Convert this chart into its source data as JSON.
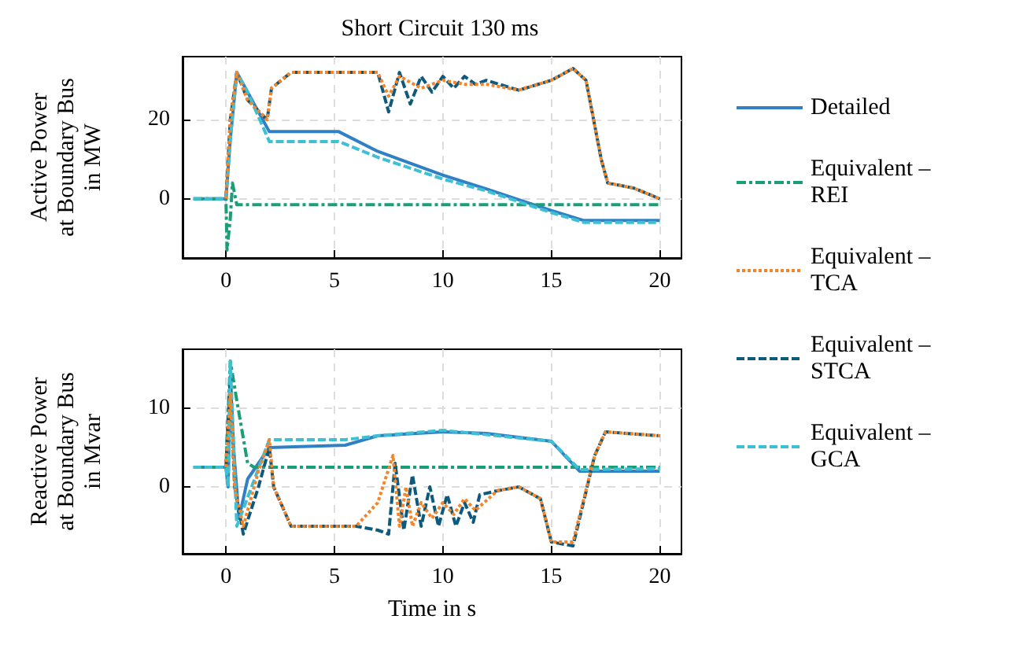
{
  "chart_data": [
    {
      "type": "line",
      "title": "Short Circuit 130 ms",
      "ylabel": "Active Power\nat Boundary Bus\nin MW",
      "xlim": [
        -2,
        21
      ],
      "xticks": [
        0,
        5,
        10,
        15,
        20
      ],
      "ylim": [
        -15,
        36
      ],
      "yticks": [
        0,
        20
      ],
      "grid": true,
      "legend": "right",
      "marker": "none",
      "series": [
        {
          "name": "Detailed",
          "color": "#2f80c4",
          "line_style": "solid",
          "x": [
            -1.5,
            0,
            0.2,
            0.5,
            1,
            2,
            5.2,
            7,
            10,
            12,
            15,
            16.5,
            20
          ],
          "values": [
            0,
            0,
            15,
            32,
            27,
            17,
            17,
            12,
            6,
            2.5,
            -3,
            -5.5,
            -5.5
          ]
        },
        {
          "name": "Equivalent – REI",
          "color": "#1a9e77",
          "line_style": "dashdot",
          "x": [
            -1.5,
            0,
            0.05,
            0.2,
            0.3,
            0.5,
            20
          ],
          "values": [
            0,
            0,
            -13,
            -5,
            4,
            -1.5,
            -1.5
          ]
        },
        {
          "name": "Equivalent – TCA",
          "color": "#f5852a",
          "line_style": "dotted",
          "x": [
            0,
            0.2,
            0.5,
            1,
            1.9,
            2.1,
            3,
            7,
            7.5,
            8,
            9,
            10,
            11,
            12,
            13.5,
            15,
            16,
            16.6,
            17.3,
            17.6,
            18.8,
            20
          ],
          "values": [
            0,
            20,
            32,
            25,
            20,
            28,
            32,
            32,
            26,
            31,
            28,
            30,
            29,
            29,
            27.5,
            30,
            33,
            30,
            10,
            4,
            2.7,
            0
          ]
        },
        {
          "name": "Equivalent – STCA",
          "color": "#0d5a7c",
          "line_style": "dashed",
          "x": [
            0,
            0.2,
            0.5,
            1,
            1.9,
            2.1,
            3,
            7,
            7.5,
            8,
            8.5,
            9,
            9.5,
            10,
            10.5,
            11,
            11.5,
            12,
            13.5,
            15,
            16,
            16.6,
            17.3,
            17.6,
            18.8,
            20
          ],
          "values": [
            0,
            20,
            32,
            25,
            20,
            28,
            32,
            32,
            22,
            32,
            24,
            31,
            27,
            31,
            28,
            31,
            29,
            30,
            27.5,
            30,
            33,
            30,
            10,
            4,
            2.7,
            0
          ]
        },
        {
          "name": "Equivalent – GCA",
          "color": "#3ec0d4",
          "line_style": "dashed",
          "x": [
            -1.5,
            0,
            0.2,
            0.5,
            1,
            2,
            5.2,
            7,
            10,
            12,
            15,
            16.5,
            20
          ],
          "values": [
            0,
            0,
            15,
            32,
            27,
            14.5,
            14.5,
            10.5,
            5,
            2,
            -3.5,
            -6,
            -6
          ]
        }
      ]
    },
    {
      "type": "line",
      "xlabel": "Time in s",
      "ylabel": "Reactive Power\nat Boundary Bus\nin Mvar",
      "xlim": [
        -2,
        21
      ],
      "xticks": [
        0,
        5,
        10,
        15,
        20
      ],
      "ylim": [
        -8.5,
        17.5
      ],
      "yticks": [
        0,
        10
      ],
      "grid": true,
      "legend": false,
      "marker": "none",
      "series": [
        {
          "color": "#2f80c4",
          "line_style": "solid",
          "x": [
            -1.5,
            0,
            0.1,
            0.2,
            0.35,
            0.6,
            1,
            2,
            5.5,
            7,
            10,
            12,
            15,
            16.3,
            20
          ],
          "values": [
            2.5,
            2.5,
            0,
            14,
            5,
            -4,
            1,
            5,
            5.3,
            6.5,
            7,
            6.8,
            5.8,
            2,
            2
          ]
        },
        {
          "color": "#1a9e77",
          "line_style": "dashdot",
          "x": [
            -1.5,
            0,
            0.2,
            0.5,
            1,
            1.3,
            20
          ],
          "values": [
            2.5,
            2.5,
            16,
            11,
            3,
            2.5,
            2.5
          ]
        },
        {
          "color": "#f5852a",
          "line_style": "dotted",
          "x": [
            0,
            0.2,
            0.4,
            0.8,
            1.5,
            2,
            2.2,
            3,
            6,
            7,
            7.7,
            8,
            8.3,
            8.6,
            9,
            9.5,
            10,
            10.5,
            11,
            11.5,
            12.5,
            13.5,
            14.5,
            15,
            16,
            17,
            17.5,
            20
          ],
          "values": [
            2.5,
            12,
            0,
            -5,
            2,
            6,
            0,
            -5,
            -5,
            -2,
            4,
            -5,
            0,
            -5,
            -2,
            -4,
            -2,
            -3.5,
            -1.5,
            -3,
            -0.5,
            0,
            -1.5,
            -7,
            -7,
            4,
            7,
            6.5
          ]
        },
        {
          "color": "#0d5a7c",
          "line_style": "dashed",
          "x": [
            0,
            0.2,
            0.4,
            0.8,
            1.5,
            2,
            2.2,
            3,
            6,
            7,
            7.5,
            7.8,
            8.2,
            8.6,
            9,
            9.4,
            9.8,
            10.2,
            10.6,
            11,
            11.4,
            11.7,
            12.5,
            13.5,
            14.5,
            15,
            16,
            17,
            17.5,
            20
          ],
          "values": [
            2.5,
            14,
            0,
            -6,
            0,
            5,
            0,
            -5,
            -5,
            -5.5,
            -6,
            3,
            -5.5,
            1.5,
            -5,
            0,
            -5,
            -1,
            -5,
            -2,
            -4.5,
            -1,
            -0.5,
            0,
            -1.5,
            -7,
            -7.5,
            4,
            7,
            6.5
          ]
        },
        {
          "color": "#3ec0d4",
          "line_style": "dashed",
          "x": [
            -1.5,
            0,
            0.1,
            0.2,
            0.5,
            2,
            5.5,
            7,
            10,
            15,
            16.3,
            20
          ],
          "values": [
            2.5,
            2.5,
            0,
            16,
            -5,
            6,
            6,
            6.5,
            7.2,
            5.8,
            2.2,
            2.3
          ]
        }
      ]
    }
  ]
}
